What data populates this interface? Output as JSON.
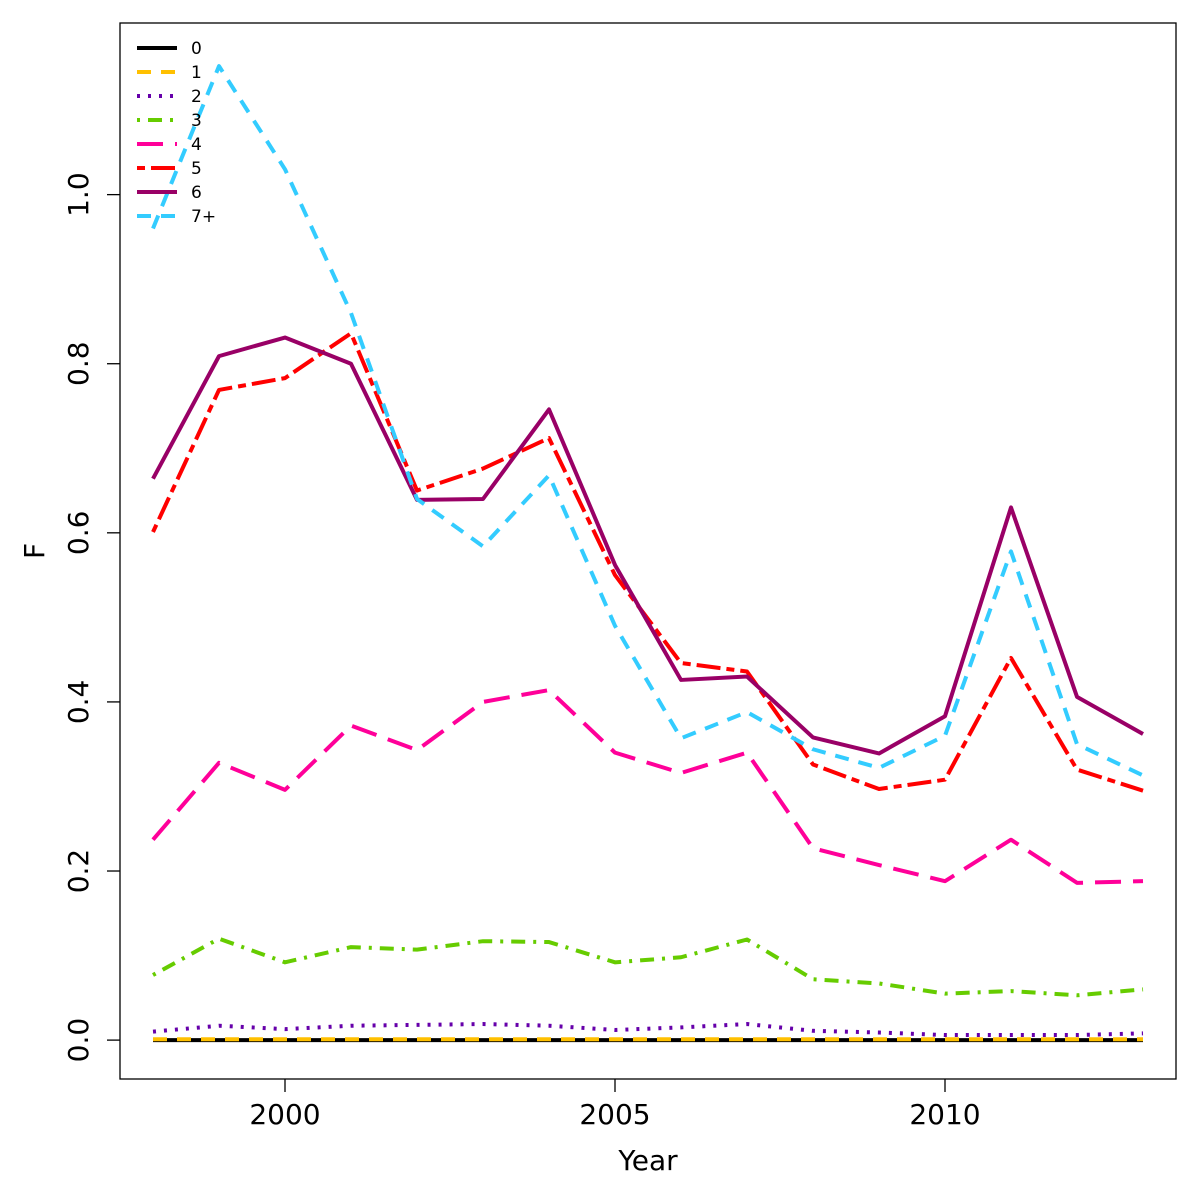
{
  "chart_data": {
    "type": "line",
    "title": "",
    "xlabel": "Year",
    "ylabel": "F",
    "xlim": [
      1997.5,
      2013.5
    ],
    "ylim": [
      -0.046,
      1.203
    ],
    "x_ticks": [
      2000,
      2005,
      2010
    ],
    "x_tick_labels": [
      "2000",
      "2005",
      "2010"
    ],
    "y_ticks": [
      0.0,
      0.2,
      0.4,
      0.6,
      0.8,
      1.0
    ],
    "y_tick_labels": [
      "0.0",
      "0.2",
      "0.4",
      "0.6",
      "0.8",
      "1.0"
    ],
    "grid": false,
    "legend_position": "top-left",
    "x": [
      1998,
      1999,
      2000,
      2001,
      2002,
      2003,
      2004,
      2005,
      2006,
      2007,
      2008,
      2009,
      2010,
      2011,
      2012,
      2013
    ],
    "series": [
      {
        "name": "0",
        "color": "#000000",
        "dash": "solid",
        "values": [
          0.0,
          0.0,
          0.0,
          0.0,
          0.0,
          0.0,
          0.0,
          0.0,
          0.0,
          0.0,
          0.0,
          0.0,
          0.0,
          0.0,
          0.0,
          0.0
        ]
      },
      {
        "name": "1",
        "color": "#FFC000",
        "dash": "dashed",
        "values": [
          0.001,
          0.001,
          0.001,
          0.001,
          0.001,
          0.001,
          0.001,
          0.001,
          0.001,
          0.001,
          0.001,
          0.001,
          0.001,
          0.001,
          0.001,
          0.001
        ]
      },
      {
        "name": "2",
        "color": "#6600AA",
        "dash": "dotted",
        "values": [
          0.01,
          0.017,
          0.013,
          0.017,
          0.018,
          0.019,
          0.017,
          0.012,
          0.015,
          0.019,
          0.011,
          0.009,
          0.006,
          0.006,
          0.006,
          0.008
        ]
      },
      {
        "name": "3",
        "color": "#66CC00",
        "dash": "dotdash",
        "values": [
          0.077,
          0.12,
          0.092,
          0.11,
          0.107,
          0.117,
          0.116,
          0.092,
          0.098,
          0.119,
          0.072,
          0.067,
          0.055,
          0.058,
          0.053,
          0.06
        ]
      },
      {
        "name": "4",
        "color": "#FF0099",
        "dash": "longdash",
        "values": [
          0.237,
          0.328,
          0.296,
          0.372,
          0.343,
          0.4,
          0.414,
          0.34,
          0.316,
          0.34,
          0.227,
          0.207,
          0.188,
          0.237,
          0.186,
          0.188
        ]
      },
      {
        "name": "5",
        "color": "#FF0000",
        "dash": "twodash",
        "values": [
          0.601,
          0.769,
          0.783,
          0.836,
          0.65,
          0.676,
          0.712,
          0.55,
          0.446,
          0.436,
          0.326,
          0.297,
          0.308,
          0.452,
          0.32,
          0.295
        ]
      },
      {
        "name": "6",
        "color": "#990066",
        "dash": "solid",
        "values": [
          0.664,
          0.809,
          0.831,
          0.8,
          0.639,
          0.64,
          0.746,
          0.562,
          0.426,
          0.43,
          0.358,
          0.339,
          0.383,
          0.63,
          0.406,
          0.362
        ]
      },
      {
        "name": "7+",
        "color": "#33CCFF",
        "dash": "dashed",
        "values": [
          0.96,
          1.152,
          1.03,
          0.86,
          0.64,
          0.584,
          0.668,
          0.49,
          0.357,
          0.388,
          0.344,
          0.322,
          0.36,
          0.578,
          0.35,
          0.313
        ]
      }
    ]
  }
}
